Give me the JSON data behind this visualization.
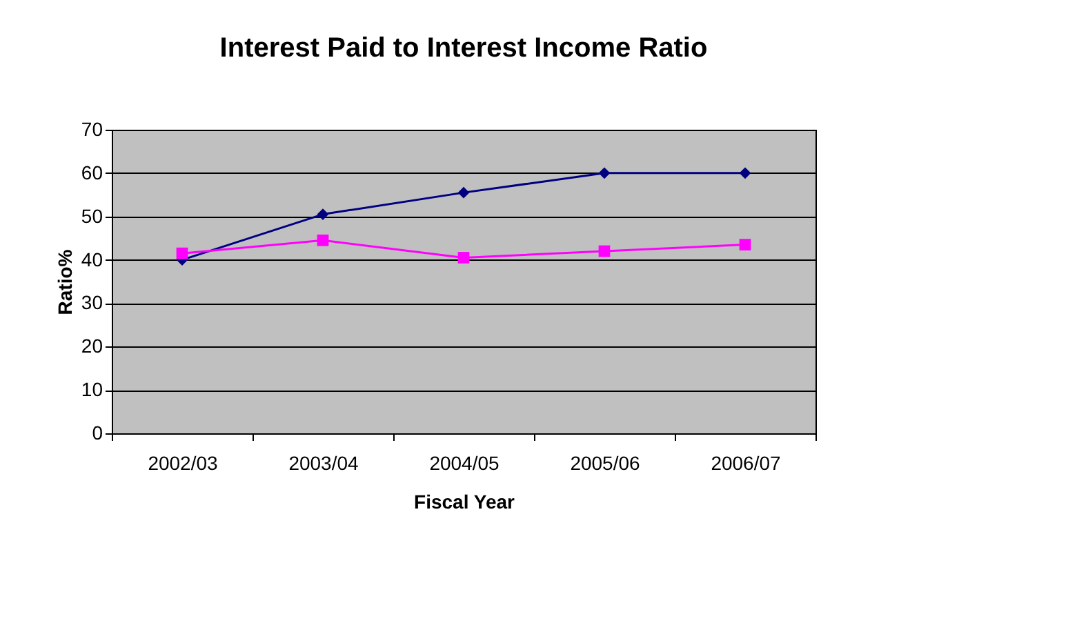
{
  "chart_data": {
    "type": "line",
    "title": "Interest Paid to Interest Income Ratio",
    "xlabel": "Fiscal Year",
    "ylabel": "Ratio%",
    "categories": [
      "2002/03",
      "2003/04",
      "2004/05",
      "2005/06",
      "2006/07"
    ],
    "series": [
      {
        "color": "#000080",
        "marker": "diamond",
        "values": [
          40,
          50.5,
          55.5,
          60,
          60
        ]
      },
      {
        "color": "#ff00ff",
        "marker": "square",
        "values": [
          41.5,
          44.5,
          40.5,
          42,
          43.5
        ]
      }
    ],
    "ylim": [
      0,
      70
    ],
    "yticks": [
      0,
      10,
      20,
      30,
      40,
      50,
      60,
      70
    ],
    "grid": "y",
    "legend": false,
    "line_style": "solid"
  }
}
